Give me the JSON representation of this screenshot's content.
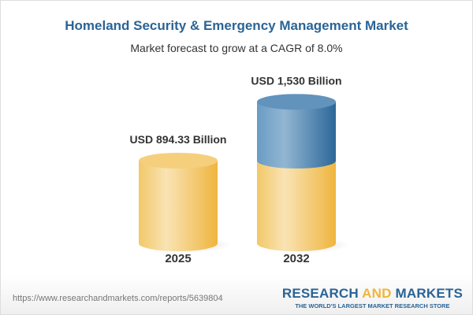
{
  "header": {
    "title": "Homeland Security & Emergency Management Market",
    "subtitle": "Market forecast to grow at a CAGR of 8.0%"
  },
  "chart_data": {
    "type": "bar",
    "style": "3d-cylinder",
    "categories": [
      "2025",
      "2032"
    ],
    "values": [
      894.33,
      1530
    ],
    "data_labels": [
      "USD 894.33 Billion",
      "USD 1,530 Billion"
    ],
    "unit": "USD Billion",
    "colors": {
      "base": "#f3c15a",
      "growth": "#3f78a8"
    }
  },
  "footer": {
    "url": "https://www.researchandmarkets.com/reports/5639804",
    "logo_part1": "RESEARCH ",
    "logo_part2": "AND",
    "logo_part3": " MARKETS",
    "tagline": "THE WORLD'S LARGEST MARKET RESEARCH STORE"
  }
}
